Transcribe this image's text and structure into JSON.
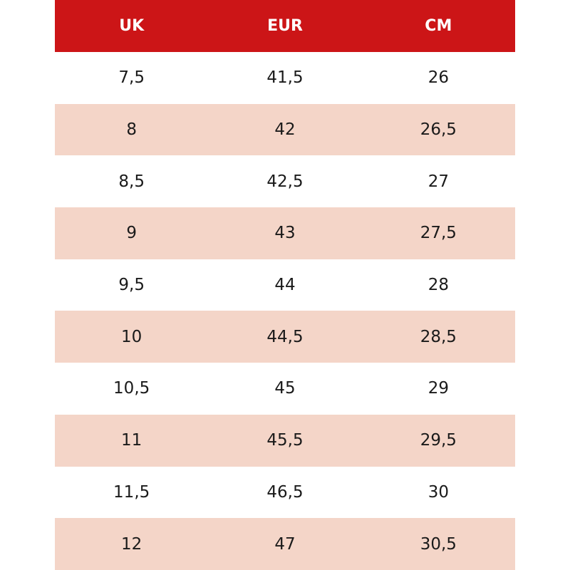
{
  "table": {
    "header": [
      "UK",
      "EUR",
      "CM"
    ],
    "rows": [
      [
        "7,5",
        "41,5",
        "26"
      ],
      [
        "8",
        "42",
        "26,5"
      ],
      [
        "8,5",
        "42,5",
        "27"
      ],
      [
        "9",
        "43",
        "27,5"
      ],
      [
        "9,5",
        "44",
        "28"
      ],
      [
        "10",
        "44,5",
        "28,5"
      ],
      [
        "10,5",
        "45",
        "29"
      ],
      [
        "11",
        "45,5",
        "29,5"
      ],
      [
        "11,5",
        "46,5",
        "30"
      ],
      [
        "12",
        "47",
        "30,5"
      ]
    ]
  }
}
